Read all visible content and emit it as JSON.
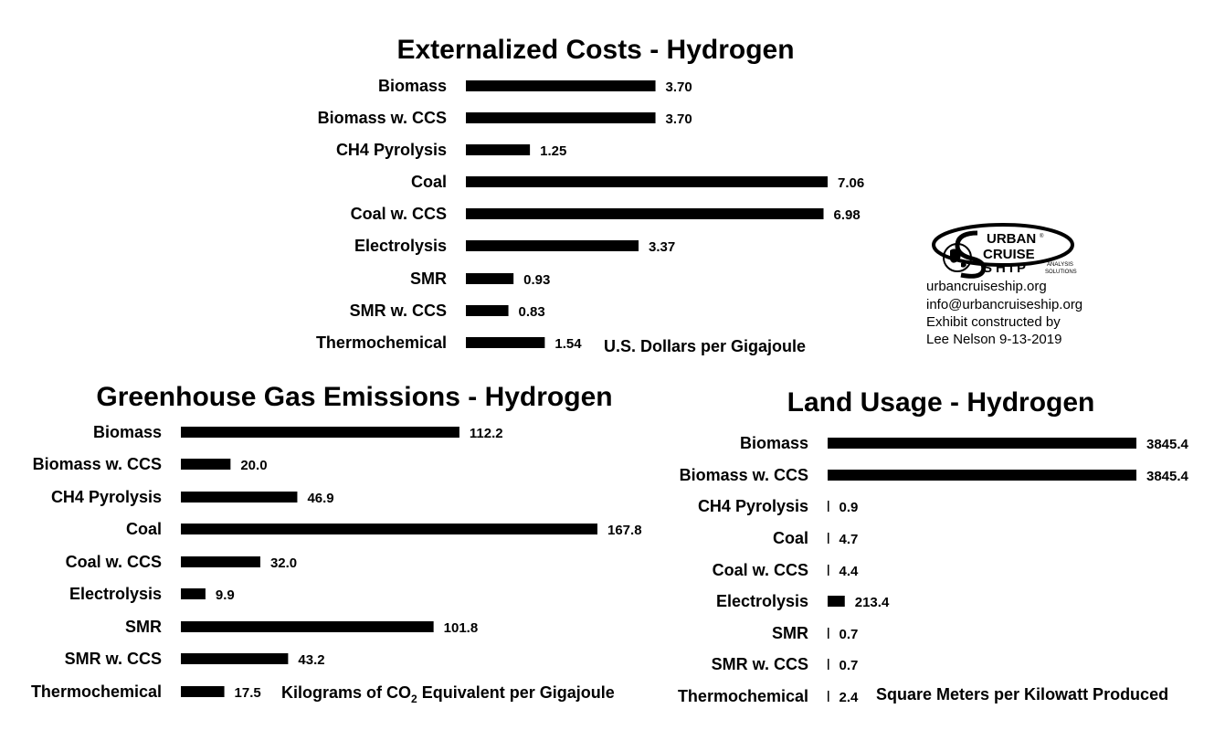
{
  "chart_data": [
    {
      "type": "bar",
      "orientation": "horizontal",
      "title": "Externalized Costs - Hydrogen",
      "unit_label": "U.S. Dollars per Gigajoule",
      "categories": [
        "Biomass",
        "Biomass w. CCS",
        "CH4 Pyrolysis",
        "Coal",
        "Coal w. CCS",
        "Electrolysis",
        "SMR",
        "SMR w. CCS",
        "Thermochemical"
      ],
      "values": [
        3.7,
        3.7,
        1.25,
        7.06,
        6.98,
        3.37,
        0.93,
        0.83,
        1.54
      ],
      "value_labels": [
        "3.70",
        "3.70",
        "1.25",
        "7.06",
        "6.98",
        "3.37",
        "0.93",
        "0.83",
        "1.54"
      ],
      "xlim": [
        0,
        7.06
      ],
      "grid": false
    },
    {
      "type": "bar",
      "orientation": "horizontal",
      "title": "Greenhouse Gas Emissions - Hydrogen",
      "unit_label_prefix": "Kilograms of CO",
      "unit_label_sub": "2",
      "unit_label_suffix": " Equivalent per Gigajoule",
      "categories": [
        "Biomass",
        "Biomass w. CCS",
        "CH4 Pyrolysis",
        "Coal",
        "Coal w. CCS",
        "Electrolysis",
        "SMR",
        "SMR w. CCS",
        "Thermochemical"
      ],
      "values": [
        112.2,
        20.0,
        46.9,
        167.8,
        32.0,
        9.9,
        101.8,
        43.2,
        17.5
      ],
      "value_labels": [
        "112.2",
        "20.0",
        "46.9",
        "167.8",
        "32.0",
        "9.9",
        "101.8",
        "43.2",
        "17.5"
      ],
      "xlim": [
        0,
        167.8
      ],
      "grid": false
    },
    {
      "type": "bar",
      "orientation": "horizontal",
      "title": "Land Usage - Hydrogen",
      "unit_label": "Square Meters per Kilowatt Produced",
      "categories": [
        "Biomass",
        "Biomass w. CCS",
        "CH4 Pyrolysis",
        "Coal",
        "Coal w. CCS",
        "Electrolysis",
        "SMR",
        "SMR w. CCS",
        "Thermochemical"
      ],
      "values": [
        3845.4,
        3845.4,
        0.9,
        4.7,
        4.4,
        213.4,
        0.7,
        0.7,
        2.4
      ],
      "value_labels": [
        "3845.4",
        "3845.4",
        "0.9",
        "4.7",
        "4.4",
        "213.4",
        "0.7",
        "0.7",
        "2.4"
      ],
      "xlim": [
        0,
        3845.4
      ],
      "grid": false
    }
  ],
  "logo": {
    "line1": "URBAN",
    "line2": "CRUISE",
    "line3": "SHIP",
    "registered": "®",
    "analysis": "ANALYSIS",
    "solutions": "SOLUTIONS"
  },
  "contact": {
    "website": "urbancruiseship.org",
    "email": "info@urbancruiseship.org",
    "credit_line1": "Exhibit constructed by",
    "credit_line2": "Lee Nelson 9-13-2019"
  },
  "colors": {
    "bar": "#000000",
    "background": "#ffffff"
  }
}
